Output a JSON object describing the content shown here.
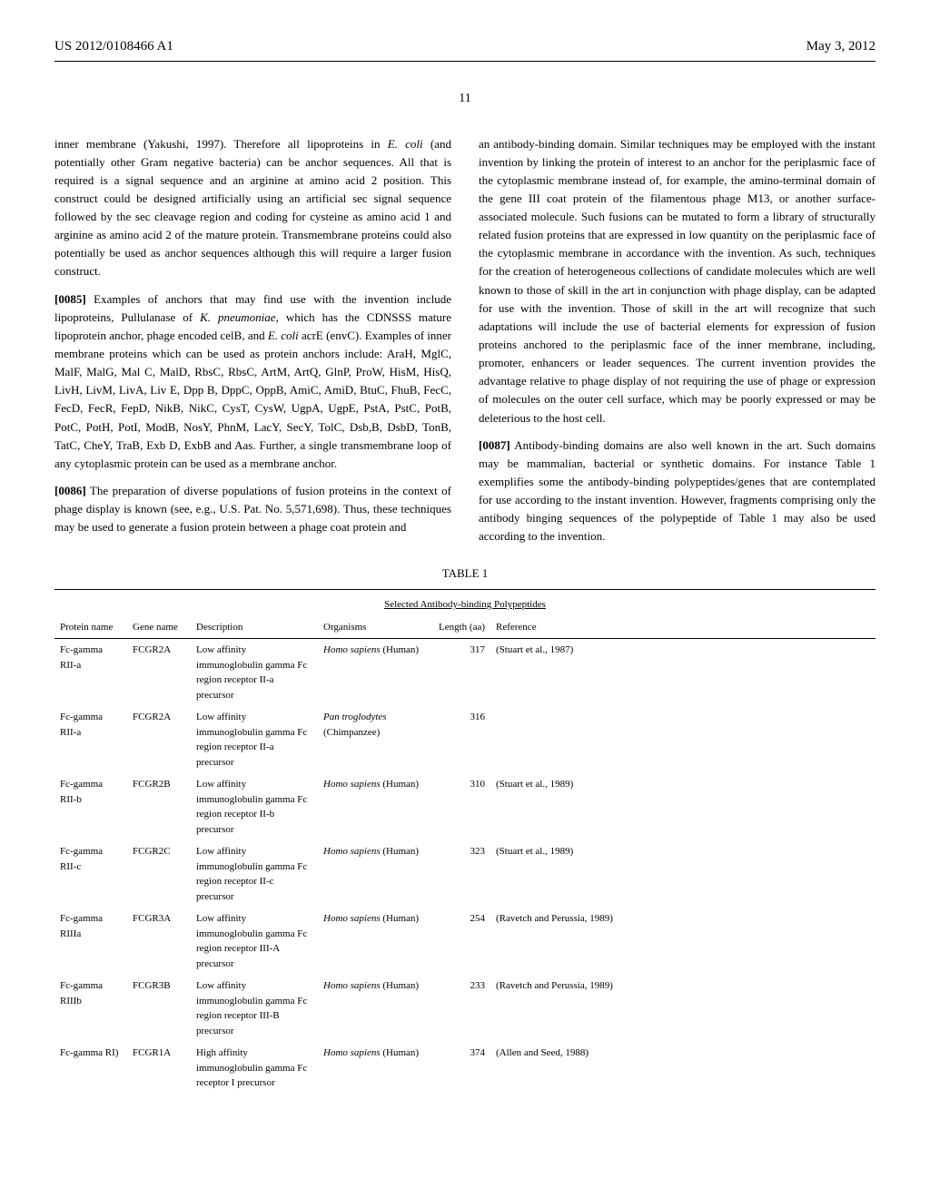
{
  "header": {
    "pub_number": "US 2012/0108466 A1",
    "date": "May 3, 2012"
  },
  "page_number": "11",
  "col_left": {
    "p1": "inner membrane (Yakushi, 1997). Therefore all lipoproteins in ",
    "p1_italic1": "E. coli",
    "p1_cont": " (and potentially other Gram negative bacteria) can be anchor sequences. All that is required is a signal sequence and an arginine at amino acid 2 position. This construct could be designed artificially using an artificial sec signal sequence followed by the sec cleavage region and coding for cysteine as amino acid 1 and arginine as amino acid 2 of the mature protein. Transmembrane proteins could also potentially be used as anchor sequences although this will require a larger fusion construct.",
    "p85_num": "[0085]",
    "p85_a": " Examples of anchors that may find use with the invention include lipoproteins, Pullulanase of ",
    "p85_italic1": "K. pneumoniae",
    "p85_b": ", which has the CDNSSS mature lipoprotein anchor, phage encoded celB, and ",
    "p85_italic2": "E. coli",
    "p85_c": " acrE (envC). Examples of inner membrane proteins which can be used as protein anchors include: AraH, MglC, MalF, MalG, Mal C, MalD, RbsC, RbsC, ArtM, ArtQ, GlnP, ProW, HisM, HisQ, LivH, LivM, LivA, Liv E, Dpp B, DppC, OppB, AmiC, AmiD, BtuC, FhuB, FecC, FecD, FecR, FepD, NikB, NikC, CysT, CysW, UgpA, UgpE, PstA, PstC, PotB, PotC, PotH, PotI, ModB, NosY, PhnM, LacY, SecY, TolC, Dsb,B, DsbD, TonB, TatC, CheY, TraB, Exb D, ExbB and Aas. Further, a single transmembrane loop of any cytoplasmic protein can be used as a membrane anchor.",
    "p86_num": "[0086]",
    "p86_text": " The preparation of diverse populations of fusion proteins in the context of phage display is known (see, e.g., U.S. Pat. No. 5,571,698). Thus, these techniques may be used to generate a fusion protein between a phage coat protein and"
  },
  "col_right": {
    "p1": "an antibody-binding domain. Similar techniques may be employed with the instant invention by linking the protein of interest to an anchor for the periplasmic face of the cytoplasmic membrane instead of, for example, the amino-terminal domain of the gene III coat protein of the filamentous phage M13, or another surface-associated molecule. Such fusions can be mutated to form a library of structurally related fusion proteins that are expressed in low quantity on the periplasmic face of the cytoplasmic membrane in accordance with the invention. As such, techniques for the creation of heterogeneous collections of candidate molecules which are well known to those of skill in the art in conjunction with phage display, can be adapted for use with the invention. Those of skill in the art will recognize that such adaptations will include the use of bacterial elements for expression of fusion proteins anchored to the periplasmic face of the inner membrane, including, promoter, enhancers or leader sequences. The current invention provides the advantage relative to phage display of not requiring the use of phage or expression of molecules on the outer cell surface, which may be poorly expressed or may be deleterious to the host cell.",
    "p87_num": "[0087]",
    "p87_text": " Antibody-binding domains are also well known in the art. Such domains may be mammalian, bacterial or synthetic domains. For instance Table 1 exemplifies some the antibody-binding polypeptides/genes that are contemplated for use according to the instant invention. However, fragments comprising only the antibody binging sequences of the polypeptide of Table 1 may also be used according to the invention."
  },
  "table": {
    "caption": "TABLE 1",
    "subtitle": "Selected Antibody-binding Polypeptides",
    "headers": {
      "protein": "Protein name",
      "gene": "Gene name",
      "desc": "Description",
      "org": "Organisms",
      "length": "Length (aa)",
      "ref": "Reference"
    },
    "rows": [
      {
        "protein": "Fc-gamma RII-a",
        "gene": "FCGR2A",
        "desc": "Low affinity immunoglobulin gamma Fc region receptor II-a precursor",
        "org_italic": "Homo sapiens",
        "org_plain": " (Human)",
        "length": "317",
        "ref": "(Stuart et al., 1987)"
      },
      {
        "protein": "Fc-gamma RII-a",
        "gene": "FCGR2A",
        "desc": "Low affinity immunoglobulin gamma Fc region receptor II-a precursor",
        "org_italic": "Pan troglodytes",
        "org_plain": " (Chimpanzee)",
        "length": "316",
        "ref": ""
      },
      {
        "protein": "Fc-gamma RII-b",
        "gene": "FCGR2B",
        "desc": "Low affinity immunoglobulin gamma Fc region receptor II-b precursor",
        "org_italic": "Homo sapiens",
        "org_plain": " (Human)",
        "length": "310",
        "ref": "(Stuart et al., 1989)"
      },
      {
        "protein": "Fc-gamma RII-c",
        "gene": "FCGR2C",
        "desc": "Low affinity immunoglobulin gamma Fc region receptor II-c precursor",
        "org_italic": "Homo sapiens",
        "org_plain": " (Human)",
        "length": "323",
        "ref": "(Stuart et al., 1989)"
      },
      {
        "protein": "Fc-gamma RIIIa",
        "gene": "FCGR3A",
        "desc": "Low affinity immunoglobulin gamma Fc region receptor III-A precursor",
        "org_italic": "Homo sapiens",
        "org_plain": " (Human)",
        "length": "254",
        "ref": "(Ravetch and Perussia, 1989)"
      },
      {
        "protein": "Fc-gamma RIIIb",
        "gene": "FCGR3B",
        "desc": "Low affinity immunoglobulin gamma Fc region receptor III-B precursor",
        "org_italic": "Homo sapiens",
        "org_plain": " (Human)",
        "length": "233",
        "ref": "(Ravetch and Perussia, 1989)"
      },
      {
        "protein": "Fc-gamma RI)",
        "gene": "FCGR1A",
        "desc": "High affinity immunoglobulin gamma Fc receptor I precursor",
        "org_italic": "Homo sapiens",
        "org_plain": " (Human)",
        "length": "374",
        "ref": "(Allen and Seed, 1988)"
      }
    ]
  }
}
